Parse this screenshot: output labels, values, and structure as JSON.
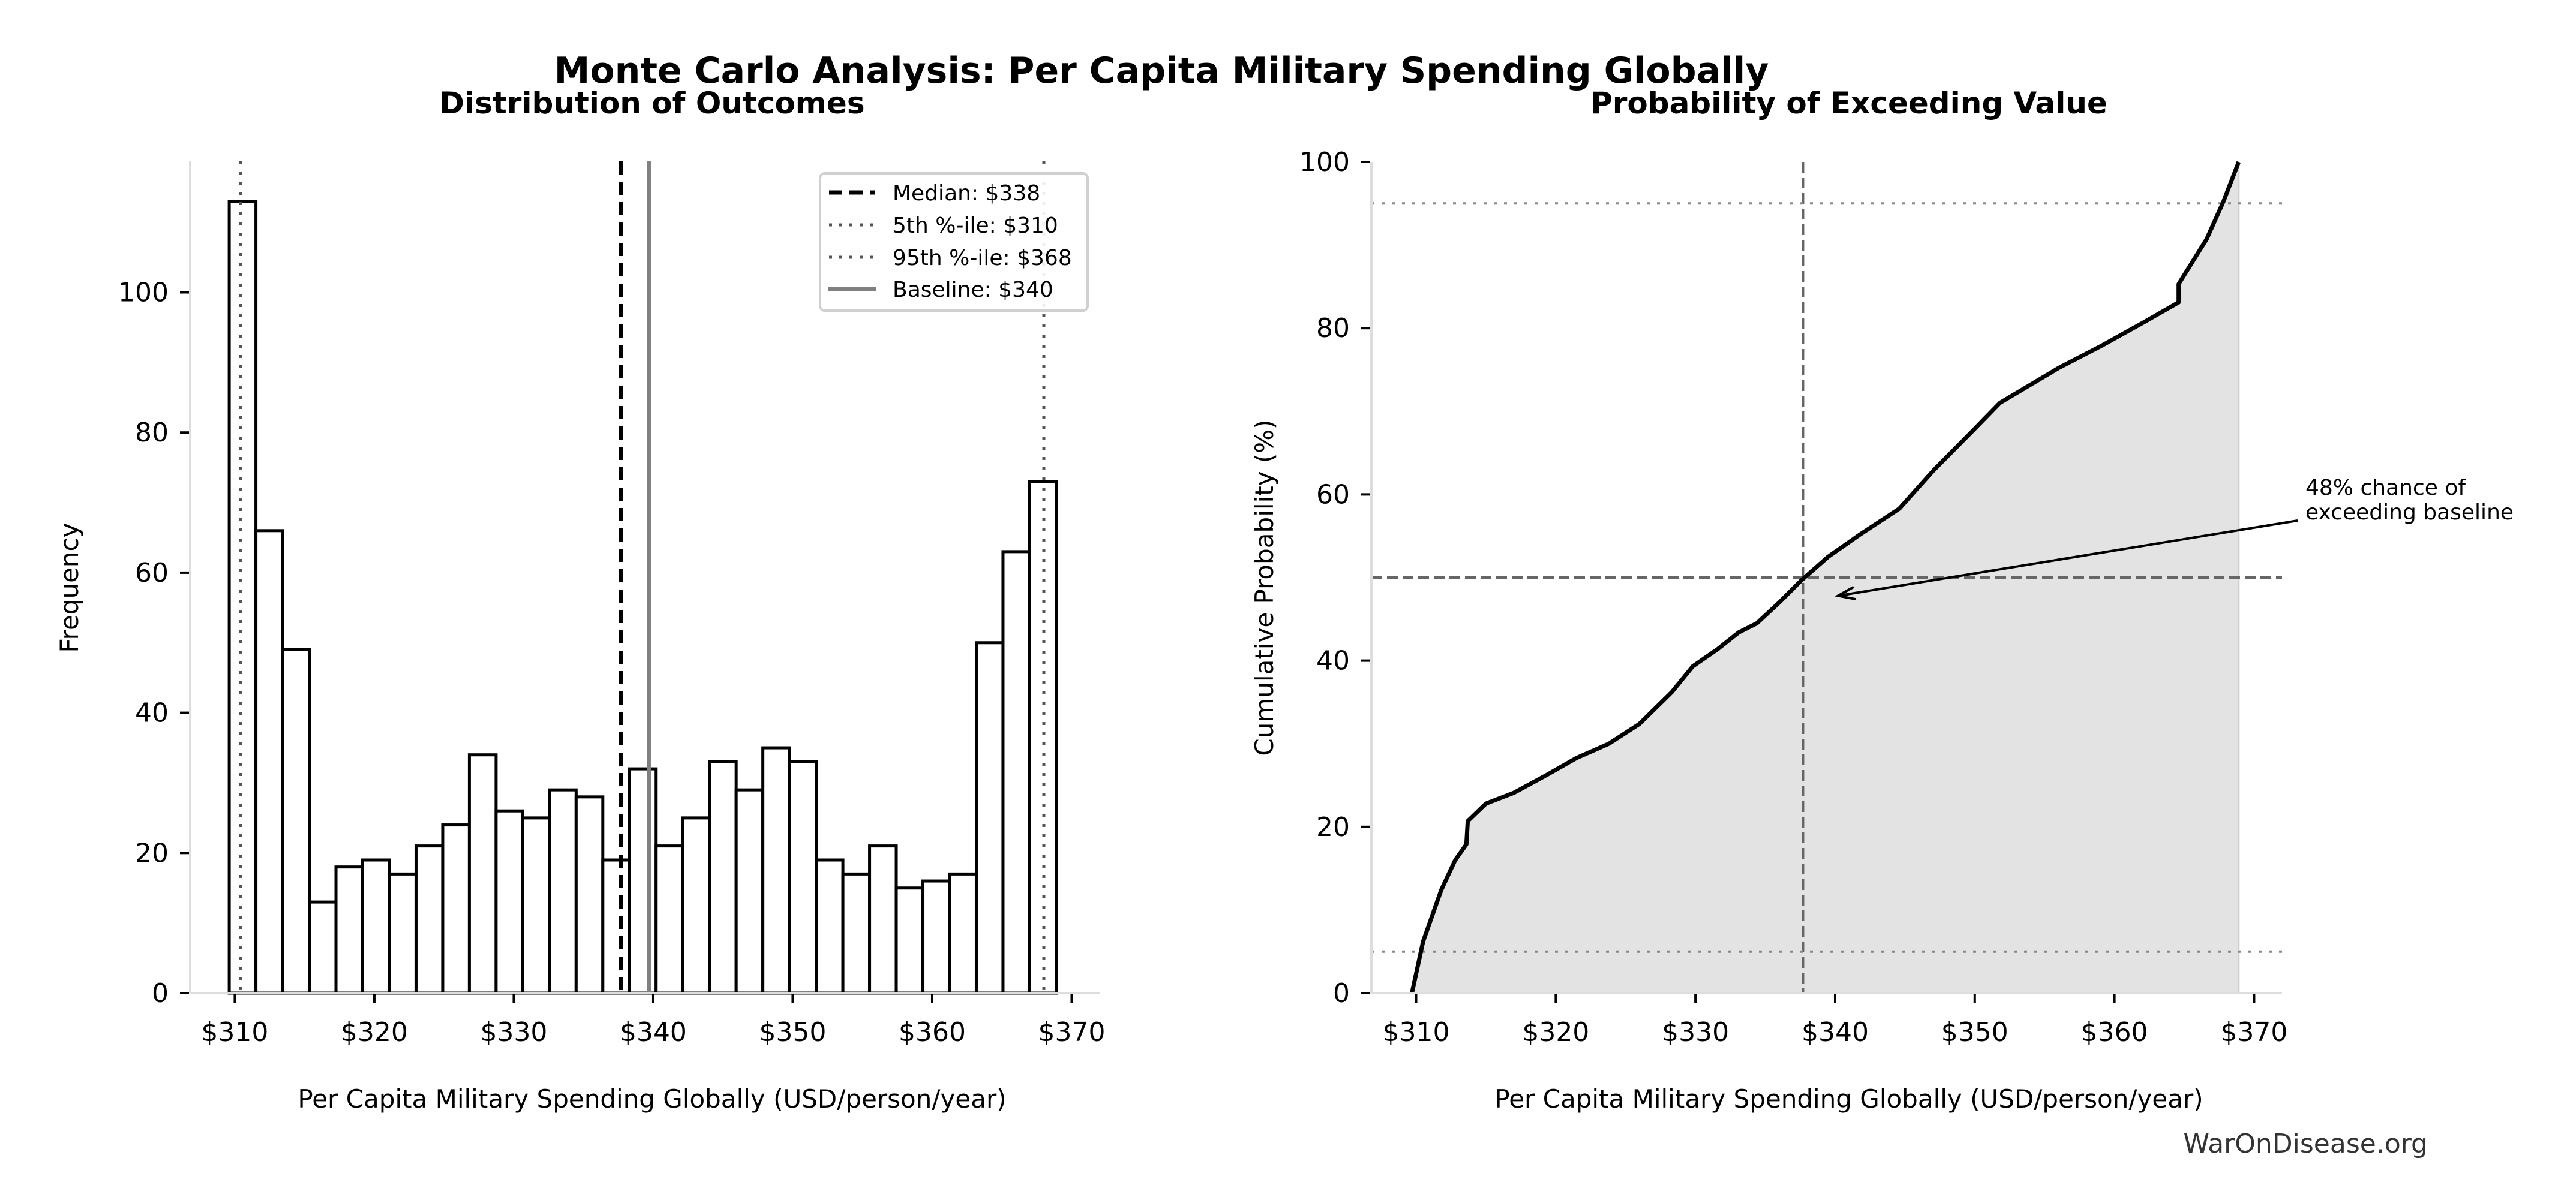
{
  "figure": {
    "title": "Monte Carlo Analysis: Per Capita Military Spending Globally",
    "footer": "WarOnDisease.org"
  },
  "chart_data": [
    {
      "type": "bar",
      "subtype": "histogram",
      "title": "Distribution of Outcomes",
      "xlabel": "Per Capita Military Spending Globally (USD/person/year)",
      "ylabel": "Frequency",
      "xlim": [
        306.8,
        372.0
      ],
      "ylim": [
        0,
        118.7
      ],
      "xticks": [
        310,
        320,
        330,
        340,
        350,
        360,
        370
      ],
      "xtick_labels": [
        "$310",
        "$320",
        "$330",
        "$340",
        "$350",
        "$360",
        "$370"
      ],
      "yticks": [
        0,
        20,
        40,
        60,
        80,
        100
      ],
      "ytick_labels": [
        "0",
        "20",
        "40",
        "60",
        "80",
        "100"
      ],
      "grid": false,
      "bin_start": 309.6,
      "bin_end": 368.9,
      "bin_count": 31,
      "values": [
        113,
        66,
        49,
        13,
        18,
        19,
        17,
        21,
        24,
        34,
        26,
        25,
        29,
        28,
        19,
        32,
        21,
        25,
        33,
        29,
        35,
        33,
        19,
        17,
        21,
        15,
        16,
        17,
        50,
        63,
        73
      ],
      "reference_lines": [
        {
          "name": "median",
          "label": "Median: $338",
          "value": 337.7,
          "style": "dashed",
          "color": "#000000"
        },
        {
          "name": "p5",
          "label": "5th %-ile: $310",
          "value": 310.4,
          "style": "dotted",
          "color": "#555555"
        },
        {
          "name": "p95",
          "label": "95th %-ile: $368",
          "value": 368.0,
          "style": "dotted",
          "color": "#555555"
        },
        {
          "name": "baseline",
          "label": "Baseline: $340",
          "value": 339.7,
          "style": "solid",
          "color": "#808080"
        }
      ],
      "legend_position": "top-right"
    },
    {
      "type": "area",
      "title": "Probability of Exceeding Value",
      "xlabel": "Per Capita Military Spending Globally (USD/person/year)",
      "ylabel": "Cumulative Probability (%)",
      "xlim": [
        306.8,
        372.0
      ],
      "ylim": [
        0,
        100
      ],
      "xticks": [
        310,
        320,
        330,
        340,
        350,
        360,
        370
      ],
      "xtick_labels": [
        "$310",
        "$320",
        "$330",
        "$340",
        "$350",
        "$360",
        "$370"
      ],
      "yticks": [
        0,
        20,
        40,
        60,
        80,
        100
      ],
      "ytick_labels": [
        "0",
        "20",
        "40",
        "60",
        "80",
        "100"
      ],
      "grid": false,
      "x": [
        309.7,
        310.5,
        311.8,
        312.8,
        313.6,
        313.7,
        315.0,
        317.0,
        319.3,
        321.5,
        323.8,
        326.0,
        328.3,
        329.8,
        331.6,
        333.1,
        334.4,
        336.0,
        337.6,
        339.5,
        341.8,
        344.6,
        347.0,
        350.0,
        351.8,
        353.6,
        356.0,
        359.1,
        362.1,
        364.6,
        364.6,
        366.6,
        367.8,
        368.9
      ],
      "y": [
        0,
        6.2,
        12.4,
        16.0,
        17.9,
        20.7,
        22.8,
        24.1,
        26.2,
        28.3,
        30.0,
        32.4,
        36.2,
        39.3,
        41.4,
        43.4,
        44.5,
        47.0,
        49.7,
        52.5,
        55.2,
        58.3,
        62.8,
        67.9,
        71.0,
        72.8,
        75.2,
        77.9,
        80.7,
        83.1,
        85.3,
        90.7,
        95.2,
        100
      ],
      "reference_lines": [
        {
          "name": "median-vertical",
          "axis": "x",
          "value": 337.7,
          "style": "dashed",
          "color": "#666666"
        },
        {
          "name": "fifty-horizontal",
          "axis": "y",
          "value": 50,
          "style": "dashed",
          "color": "#666666"
        },
        {
          "name": "p95-horizontal",
          "axis": "y",
          "value": 95,
          "style": "dotted",
          "color": "#888888"
        },
        {
          "name": "p5-horizontal",
          "axis": "y",
          "value": 5,
          "style": "dotted",
          "color": "#888888"
        }
      ],
      "annotation": {
        "lines": [
          "48% chance of",
          "exceeding baseline"
        ],
        "target": [
          340.2,
          47.8
        ]
      },
      "fill_color": "#e3e3e3",
      "line_color": "#000000"
    }
  ]
}
